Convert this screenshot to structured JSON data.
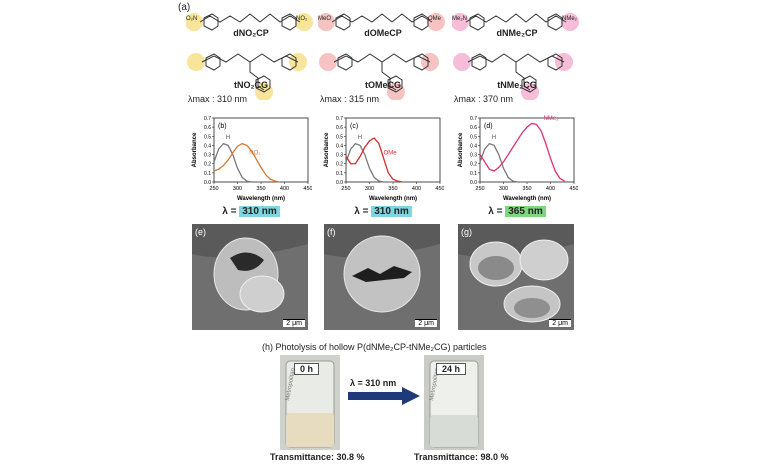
{
  "panel_a_label": "(a)",
  "columns": [
    {
      "id": "no2",
      "cp_name": "dNO₂CP",
      "cg_name": "tNO₂CG",
      "lambda_max_label": "λmax : 310 nm",
      "substituent": "O₂N",
      "substituent_right": "NO₂",
      "highlight_color": "#f5d870",
      "panel_letter": "(b)",
      "curve_label_h": "H",
      "curve_label_sub": "NO₂",
      "curve_color": "#d27a3a",
      "peak_nm": 310,
      "irradiation_label": "λ = ",
      "irradiation_value": "310 nm",
      "irradiation_color": "#7fd6e0",
      "sem_letter": "(e)",
      "scale_label": "2 μm"
    },
    {
      "id": "ome",
      "cp_name": "dOMeCP",
      "cg_name": "tOMeCG",
      "lambda_max_label": "λmax : 315 nm",
      "substituent": "MeO",
      "substituent_right": "OMe",
      "highlight_color": "#f4a8a8",
      "panel_letter": "(c)",
      "curve_label_h": "H",
      "curve_label_sub": "OMe",
      "curve_color": "#d62a2a",
      "peak_nm": 315,
      "irradiation_label": "λ = ",
      "irradiation_value": "310 nm",
      "irradiation_color": "#7fd6e0",
      "sem_letter": "(f)",
      "scale_label": "2 μm"
    },
    {
      "id": "nme2",
      "cp_name": "dNMe₂CP",
      "cg_name": "tNMe₂CG",
      "lambda_max_label": "λmax : 370 nm",
      "substituent": "Me₂N",
      "substituent_right": "NMe₂",
      "highlight_color": "#f2a0c8",
      "panel_letter": "(d)",
      "curve_label_h": "H",
      "curve_label_sub": "NMe₂",
      "curve_color": "#e0307a",
      "peak_nm": 370,
      "irradiation_label": "λ = ",
      "irradiation_value": "365 nm",
      "irradiation_color": "#7fd67f",
      "sem_letter": "(g)",
      "scale_label": "2 μm"
    }
  ],
  "chart_data": [
    {
      "type": "line",
      "xlabel": "Wavelength (nm)",
      "ylabel": "Absorbance",
      "xlim": [
        250,
        450
      ],
      "ylim": [
        0,
        0.7
      ],
      "xticks": [
        250,
        300,
        350,
        400,
        450
      ],
      "yticks": [
        0,
        0.1,
        0.2,
        0.3,
        0.4,
        0.5,
        0.6,
        0.7
      ],
      "series": [
        {
          "name": "H",
          "x": [
            250,
            260,
            270,
            280,
            290,
            300,
            310,
            320,
            330,
            340,
            350
          ],
          "y": [
            0.22,
            0.36,
            0.42,
            0.4,
            0.3,
            0.15,
            0.05,
            0.01,
            0,
            0,
            0
          ]
        },
        {
          "name": "NO₂",
          "x": [
            250,
            260,
            270,
            280,
            290,
            300,
            310,
            320,
            330,
            340,
            350,
            360,
            370,
            380,
            390
          ],
          "y": [
            0.12,
            0.14,
            0.18,
            0.24,
            0.32,
            0.39,
            0.42,
            0.4,
            0.34,
            0.25,
            0.16,
            0.08,
            0.03,
            0.01,
            0
          ]
        }
      ]
    },
    {
      "type": "line",
      "xlabel": "Wavelength (nm)",
      "ylabel": "Absorbance",
      "xlim": [
        250,
        450
      ],
      "ylim": [
        0,
        0.7
      ],
      "xticks": [
        250,
        300,
        350,
        400,
        450
      ],
      "yticks": [
        0,
        0.1,
        0.2,
        0.3,
        0.4,
        0.5,
        0.6,
        0.7
      ],
      "series": [
        {
          "name": "H",
          "x": [
            250,
            260,
            270,
            280,
            290,
            300,
            310,
            320,
            330,
            340,
            350
          ],
          "y": [
            0.22,
            0.36,
            0.42,
            0.4,
            0.3,
            0.15,
            0.05,
            0.01,
            0,
            0,
            0
          ]
        },
        {
          "name": "OMe",
          "x": [
            250,
            260,
            270,
            280,
            290,
            300,
            310,
            320,
            330,
            340,
            350,
            360,
            370
          ],
          "y": [
            0.28,
            0.2,
            0.2,
            0.28,
            0.38,
            0.45,
            0.48,
            0.42,
            0.26,
            0.1,
            0.03,
            0.01,
            0
          ]
        }
      ]
    },
    {
      "type": "line",
      "xlabel": "Wavelength (nm)",
      "ylabel": "Absorbance",
      "xlim": [
        250,
        450
      ],
      "ylim": [
        0,
        0.7
      ],
      "xticks": [
        250,
        300,
        350,
        400,
        450
      ],
      "yticks": [
        0,
        0.1,
        0.2,
        0.3,
        0.4,
        0.5,
        0.6,
        0.7
      ],
      "series": [
        {
          "name": "H",
          "x": [
            250,
            260,
            270,
            280,
            290,
            300,
            310,
            320,
            330,
            340,
            350
          ],
          "y": [
            0.22,
            0.36,
            0.42,
            0.4,
            0.3,
            0.15,
            0.05,
            0.01,
            0,
            0,
            0
          ]
        },
        {
          "name": "NMe₂",
          "x": [
            250,
            260,
            270,
            280,
            290,
            300,
            310,
            320,
            330,
            340,
            350,
            360,
            370,
            380,
            390,
            400,
            410,
            420,
            430
          ],
          "y": [
            0.3,
            0.22,
            0.14,
            0.12,
            0.16,
            0.22,
            0.3,
            0.38,
            0.46,
            0.54,
            0.6,
            0.64,
            0.63,
            0.56,
            0.42,
            0.26,
            0.12,
            0.04,
            0.01
          ]
        }
      ]
    }
  ],
  "photolysis": {
    "caption": "(h) Photolysis of hollow P(dNMe₂CP-tNMe₂CG) particles",
    "left_time": "0 h",
    "right_time": "24 h",
    "arrow_label": "λ = 310 nm",
    "arrow_color": "#1f3a7a",
    "left_transmittance": "Transmittance: 30.8 %",
    "right_transmittance": "Transmittance: 98.0 %"
  }
}
